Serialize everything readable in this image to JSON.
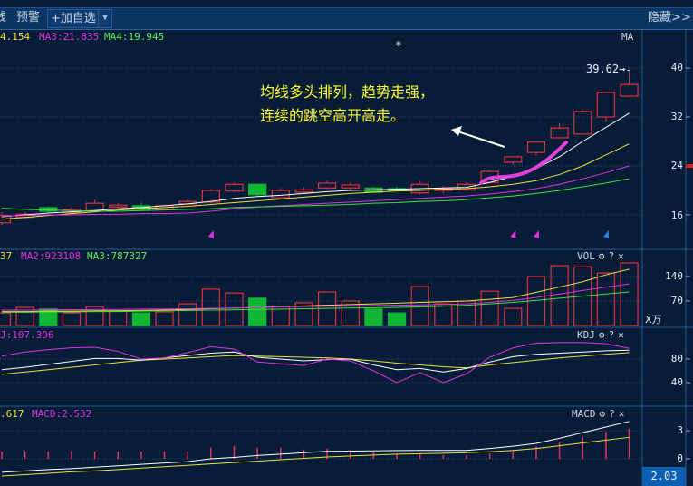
{
  "toolbar": {
    "partial_item": "线",
    "alert_label": "预警",
    "add_watchlist_label": "+加自选",
    "dropdown_icon": "chevron-down-icon",
    "hide_label": "隐藏>>"
  },
  "main_panel": {
    "legend": {
      "ma2": "4.154",
      "ma3": "MA3:21.835",
      "ma4": "MA4:19.945"
    },
    "indicator_label": "MA",
    "max_price_label": "39.62→",
    "star_marker": "*",
    "annotation_line1": "均线多头排列，趋势走强，",
    "annotation_line2": "连续的跳空高开高走。",
    "y_ticks": [
      "40",
      "32",
      "24",
      "16"
    ]
  },
  "volume_panel": {
    "legend": {
      "ma1": "37",
      "ma2": "MA2:923108",
      "ma3": "MA3:787327"
    },
    "indicator_label": "VOL",
    "unit_label": "X万",
    "y_ticks": [
      "140",
      "70"
    ]
  },
  "kdj_panel": {
    "legend": {
      "j": "J:107.396"
    },
    "indicator_label": "KDJ",
    "y_ticks": [
      "80",
      "40"
    ]
  },
  "macd_panel": {
    "legend": {
      "dea": ".617",
      "macd": "MACD:2.532"
    },
    "indicator_label": "MACD",
    "y_ticks": [
      "3",
      "0"
    ],
    "current_value": "2.03"
  },
  "panel_controls": {
    "settings_icon": "⚙",
    "help_icon": "?",
    "close_icon": "✕"
  },
  "colors": {
    "background": "#071c36",
    "up": "#e0303c",
    "down": "#12b534",
    "ma1": "#ffffff",
    "ma2": "#f0e040",
    "ma3": "#e030e0",
    "ma4": "#40e040",
    "annotation": "#ffff33",
    "highlight_curve": "#e040e0"
  },
  "chart_data": {
    "type": "candlestick",
    "ylim": [
      13,
      42
    ],
    "candles": [
      {
        "o": 14.7,
        "h": 16.4,
        "l": 14.3,
        "c": 15.9
      },
      {
        "o": 15.6,
        "h": 16.5,
        "l": 15.4,
        "c": 16.1
      },
      {
        "o": 17.2,
        "h": 17.4,
        "l": 16.4,
        "c": 16.6
      },
      {
        "o": 16.4,
        "h": 17.3,
        "l": 16.2,
        "c": 16.9
      },
      {
        "o": 16.7,
        "h": 18.4,
        "l": 16.6,
        "c": 17.9
      },
      {
        "o": 17.3,
        "h": 18.0,
        "l": 17.2,
        "c": 17.6
      },
      {
        "o": 17.5,
        "h": 18.0,
        "l": 16.8,
        "c": 16.9
      },
      {
        "o": 16.9,
        "h": 17.7,
        "l": 16.8,
        "c": 17.5
      },
      {
        "o": 17.8,
        "h": 18.6,
        "l": 17.6,
        "c": 18.2
      },
      {
        "o": 18.1,
        "h": 20.2,
        "l": 17.9,
        "c": 20.0
      },
      {
        "o": 19.9,
        "h": 21.3,
        "l": 19.7,
        "c": 21.0
      },
      {
        "o": 21.0,
        "h": 21.0,
        "l": 19.0,
        "c": 19.3
      },
      {
        "o": 18.8,
        "h": 20.4,
        "l": 18.6,
        "c": 20.0
      },
      {
        "o": 19.7,
        "h": 20.5,
        "l": 19.4,
        "c": 20.1
      },
      {
        "o": 20.4,
        "h": 21.6,
        "l": 20.2,
        "c": 21.2
      },
      {
        "o": 20.4,
        "h": 21.3,
        "l": 20.0,
        "c": 20.9
      },
      {
        "o": 20.4,
        "h": 20.6,
        "l": 19.6,
        "c": 19.7
      },
      {
        "o": 20.3,
        "h": 20.6,
        "l": 19.9,
        "c": 20.0
      },
      {
        "o": 19.6,
        "h": 21.6,
        "l": 19.3,
        "c": 21.0
      },
      {
        "o": 20.0,
        "h": 20.8,
        "l": 19.5,
        "c": 20.3
      },
      {
        "o": 20.1,
        "h": 21.3,
        "l": 19.9,
        "c": 21.0
      },
      {
        "o": 21.3,
        "h": 23.3,
        "l": 21.1,
        "c": 23.1
      },
      {
        "o": 24.6,
        "h": 25.6,
        "l": 24.2,
        "c": 25.5
      },
      {
        "o": 26.2,
        "h": 28.0,
        "l": 25.7,
        "c": 27.9
      },
      {
        "o": 28.6,
        "h": 31.0,
        "l": 28.5,
        "c": 30.2
      },
      {
        "o": 29.2,
        "h": 33.2,
        "l": 29.1,
        "c": 32.9
      },
      {
        "o": 32.0,
        "h": 36.0,
        "l": 31.1,
        "c": 36.0
      },
      {
        "o": 35.4,
        "h": 39.62,
        "l": 35.4,
        "c": 37.3
      }
    ],
    "ma_series": [
      {
        "key": "ma1",
        "values": [
          15.7,
          16.0,
          16.3,
          16.5,
          16.7,
          17.0,
          17.2,
          17.5,
          17.8,
          18.2,
          18.7,
          19.0,
          19.2,
          19.5,
          19.8,
          20.0,
          20.1,
          20.2,
          20.3,
          20.4,
          20.5,
          21.3,
          22.3,
          23.6,
          25.5,
          28.0,
          30.3,
          32.6
        ]
      },
      {
        "key": "ma2",
        "values": [
          15.3,
          15.6,
          15.9,
          16.2,
          16.5,
          16.8,
          17.0,
          17.2,
          17.4,
          17.7,
          18.0,
          18.3,
          18.6,
          18.9,
          19.2,
          19.5,
          19.7,
          19.9,
          20.0,
          20.2,
          20.3,
          20.6,
          21.0,
          21.6,
          22.6,
          24.0,
          25.8,
          27.6
        ]
      },
      {
        "key": "ma3",
        "values": [
          15.8,
          15.9,
          16.0,
          16.0,
          16.1,
          16.1,
          16.2,
          16.2,
          16.3,
          16.6,
          17.0,
          17.3,
          17.5,
          17.7,
          17.9,
          18.1,
          18.3,
          18.5,
          18.7,
          18.9,
          19.1,
          19.4,
          19.8,
          20.3,
          21.0,
          21.9,
          22.9,
          24.0
        ]
      },
      {
        "key": "ma4",
        "values": [
          17.1,
          16.9,
          16.8,
          16.7,
          16.6,
          16.6,
          16.7,
          16.8,
          16.9,
          17.0,
          17.2,
          17.3,
          17.4,
          17.5,
          17.6,
          17.7,
          17.9,
          18.0,
          18.2,
          18.3,
          18.5,
          18.8,
          19.1,
          19.5,
          20.0,
          20.6,
          21.2,
          21.9
        ]
      }
    ],
    "signal_markers": [
      {
        "index": 9,
        "color": "#e030e0"
      },
      {
        "index": 22,
        "color": "#e030e0"
      },
      {
        "index": 23,
        "color": "#e030e0"
      },
      {
        "index": 26,
        "color": "#2a7de0"
      }
    ],
    "volume": {
      "unit": "万",
      "values": [
        36,
        52,
        47,
        36,
        54,
        41,
        36,
        39,
        62,
        104,
        93,
        78,
        54,
        65,
        96,
        70,
        47,
        36,
        111,
        62,
        70,
        98,
        49,
        140,
        171,
        168,
        150,
        179
      ],
      "ma_series": [
        {
          "key": "ma2",
          "values": [
            40,
            40,
            41,
            41,
            42,
            42,
            43,
            44,
            46,
            48,
            50,
            52,
            54,
            56,
            58,
            60,
            62,
            64,
            66,
            68,
            70,
            75,
            80,
            95,
            110,
            125,
            145,
            161
          ]
        },
        {
          "key": "ma3",
          "values": [
            44,
            44,
            45,
            45,
            46,
            46,
            47,
            47,
            48,
            49,
            50,
            52,
            53,
            54,
            55,
            56,
            57,
            58,
            59,
            60,
            62,
            66,
            72,
            80,
            90,
            100,
            110,
            119
          ]
        },
        {
          "key": "ma4",
          "values": [
            38,
            38,
            39,
            39,
            40,
            40,
            41,
            42,
            43,
            44,
            45,
            46,
            47,
            48,
            49,
            50,
            51,
            52,
            53,
            55,
            58,
            62,
            66,
            72,
            78,
            84,
            90,
            96
          ]
        }
      ]
    },
    "kdj": {
      "k": [
        62,
        66,
        71,
        76,
        81,
        81,
        78,
        82,
        86,
        90,
        92,
        83,
        80,
        77,
        79,
        80,
        70,
        62,
        64,
        58,
        64,
        75,
        84,
        88,
        90,
        92,
        94,
        95
      ],
      "d": [
        54,
        58,
        62,
        66,
        70,
        74,
        78,
        80,
        82,
        84,
        86,
        85,
        84,
        83,
        82,
        80,
        77,
        73,
        70,
        67,
        65,
        70,
        74,
        78,
        82,
        85,
        88,
        91
      ],
      "j": [
        85,
        92,
        96,
        99,
        100,
        93,
        80,
        82,
        91,
        101,
        97,
        75,
        72,
        69,
        80,
        77,
        60,
        40,
        57,
        40,
        55,
        83,
        99,
        107,
        108,
        108,
        106,
        98
      ]
    },
    "macd": {
      "dif": [
        -1.45,
        -1.3,
        -1.15,
        -1.05,
        -0.9,
        -0.75,
        -0.6,
        -0.45,
        -0.3,
        0.0,
        0.15,
        0.35,
        0.5,
        0.65,
        0.8,
        0.82,
        0.85,
        0.88,
        0.9,
        0.9,
        0.9,
        1.1,
        1.35,
        1.65,
        2.2,
        2.8,
        3.4,
        4.0
      ],
      "dea": [
        -1.85,
        -1.7,
        -1.55,
        -1.4,
        -1.3,
        -1.15,
        -1.0,
        -0.85,
        -0.7,
        -0.55,
        -0.4,
        -0.25,
        -0.1,
        0.05,
        0.2,
        0.3,
        0.4,
        0.5,
        0.55,
        0.6,
        0.65,
        0.75,
        0.9,
        1.1,
        1.4,
        1.7,
        2.0,
        2.3
      ],
      "hist": [
        0.8,
        0.8,
        0.8,
        0.8,
        0.8,
        0.8,
        0.8,
        0.8,
        0.8,
        1.2,
        1.4,
        1.2,
        1.2,
        1.0,
        1.1,
        1.0,
        0.7,
        0.55,
        0.55,
        0.4,
        0.4,
        0.55,
        0.9,
        1.35,
        1.85,
        2.35,
        2.9,
        3.2
      ]
    }
  }
}
